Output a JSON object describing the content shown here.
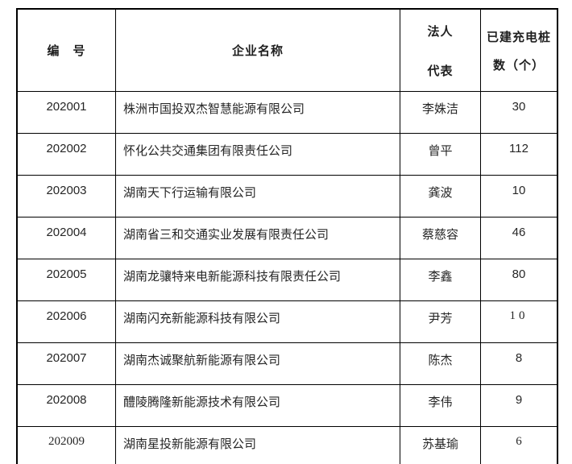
{
  "page": {
    "background_color": "#ffffff",
    "border_color": "#000000",
    "text_color": "#262626"
  },
  "table": {
    "headers": [
      {
        "lines": [
          "编　号"
        ]
      },
      {
        "lines": [
          "企业名称"
        ]
      },
      {
        "lines": [
          "法人",
          "代表"
        ]
      },
      {
        "lines": [
          "已建充电桩",
          "数（个）"
        ]
      }
    ],
    "rows": [
      {
        "id": "202001",
        "company": "株洲市国投双杰智慧能源有限公司",
        "rep": "李姝洁",
        "count": "30"
      },
      {
        "id": "202002",
        "company": "怀化公共交通集团有限责任公司",
        "rep": "曾平",
        "count": "112"
      },
      {
        "id": "202003",
        "company": "湖南天下行运输有限公司",
        "rep": "龚波",
        "count": "10"
      },
      {
        "id": "202004",
        "company": "湖南省三和交通实业发展有限责任公司",
        "rep": "蔡慈容",
        "count": "46"
      },
      {
        "id": "202005",
        "company": "湖南龙骧特来电新能源科技有限责任公司",
        "rep": "李鑫",
        "count": "80"
      },
      {
        "id": "202006",
        "company": "湖南闪充新能源科技有限公司",
        "rep": "尹芳",
        "count": "10"
      },
      {
        "id": "202007",
        "company": "湖南杰诚聚航新能源有限公司",
        "rep": "陈杰",
        "count": "8"
      },
      {
        "id": "202008",
        "company": "醴陵腾隆新能源技术有限公司",
        "rep": "李伟",
        "count": "9"
      },
      {
        "id": "202009",
        "company": "湖南星投新能源有限公司",
        "rep": "苏基瑜",
        "count": "6"
      }
    ]
  }
}
